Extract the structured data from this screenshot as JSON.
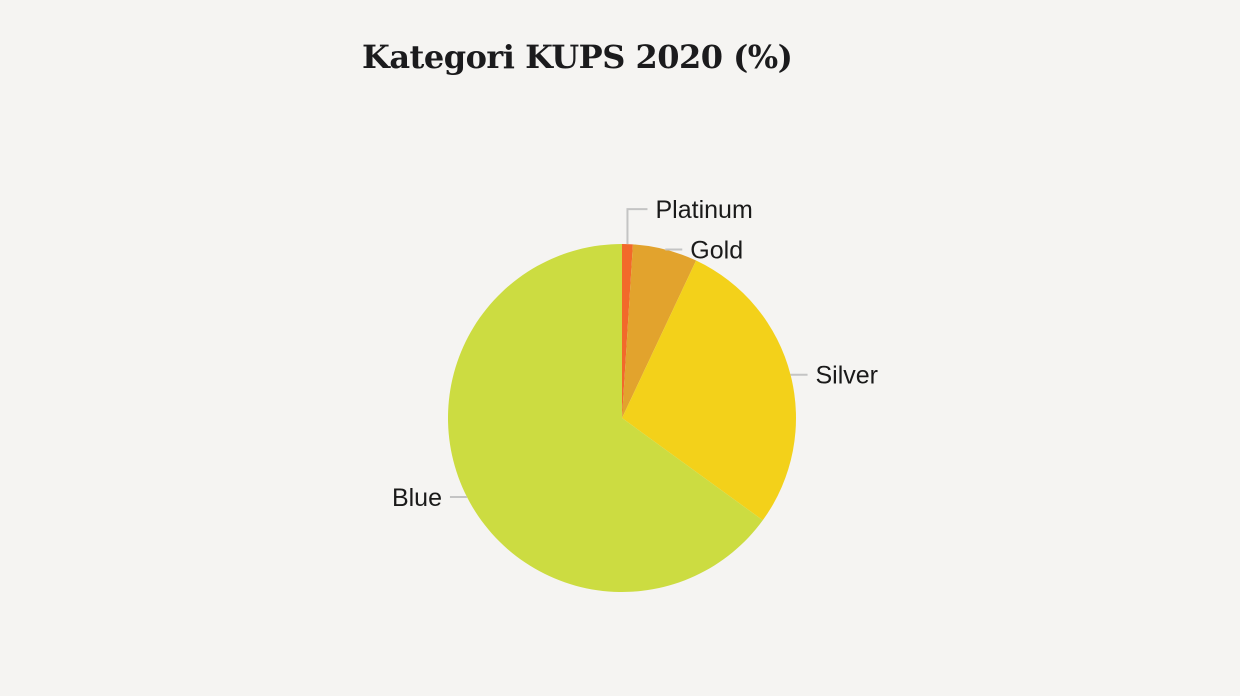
{
  "page": {
    "background": "#f5f4f2"
  },
  "header": {
    "title": "Kategori KUPS 2020 (%)"
  },
  "chart_data": {
    "type": "pie",
    "title": "Kategori KUPS 2020 (%)",
    "categories": [
      "Platinum",
      "Gold",
      "Silver",
      "Blue"
    ],
    "values": [
      1,
      6,
      28,
      65
    ],
    "unit": "percent",
    "start_angle_deg": 0,
    "direction": "clockwise",
    "colors": {
      "Platinum": "#f2692a",
      "Gold": "#e2a32d",
      "Silver": "#f3d11a",
      "Blue": "#ccdc41"
    },
    "label_style": {
      "text_color": "#1a1a1a",
      "leader_line_color": "#c4c4c4"
    },
    "legend_position": "outside-labels",
    "grid": false
  }
}
